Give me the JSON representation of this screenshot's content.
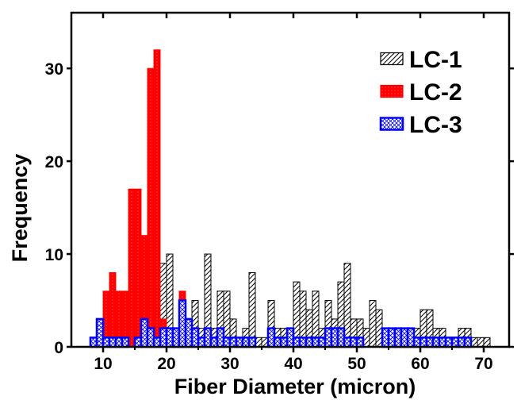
{
  "chart_data": {
    "type": "bar",
    "xlabel": "Fiber Diameter (micron)",
    "ylabel": "Frequency",
    "xlim": [
      5,
      74
    ],
    "ylim": [
      0,
      36
    ],
    "bin_width": 1,
    "x_ticks": [
      10,
      20,
      30,
      40,
      50,
      60,
      70
    ],
    "y_ticks": [
      0,
      10,
      20,
      30
    ],
    "grid": false,
    "legend_position": "top-right",
    "series": [
      {
        "name": "LC-1",
        "color": "#000000",
        "fill": "diagonal-hatch",
        "x": [
          17,
          18,
          19,
          20,
          21,
          22,
          23,
          24,
          25,
          26,
          27,
          28,
          29,
          30,
          31,
          32,
          33,
          34,
          35,
          36,
          37,
          38,
          39,
          40,
          41,
          42,
          43,
          44,
          45,
          46,
          47,
          48,
          49,
          50,
          51,
          52,
          53,
          54,
          55,
          56,
          57,
          58,
          59,
          60,
          61,
          62,
          63,
          64,
          65,
          66,
          67,
          68,
          69,
          70,
          71
        ],
        "values": [
          0,
          8,
          9,
          10,
          2,
          2,
          3,
          5,
          2,
          10,
          2,
          6,
          6,
          3,
          1,
          2,
          8,
          1,
          1,
          5,
          2,
          2,
          1,
          7,
          6,
          4,
          6,
          2,
          5,
          3,
          7,
          9,
          3,
          3,
          2,
          5,
          4,
          2,
          2,
          2,
          2,
          2,
          2,
          4,
          4,
          2,
          2,
          1,
          1,
          2,
          2,
          1,
          1,
          1,
          0
        ]
      },
      {
        "name": "LC-2",
        "color": "#ff0000",
        "fill": "dotted",
        "x": [
          9,
          10,
          11,
          12,
          13,
          14,
          15,
          16,
          17,
          18,
          19,
          20,
          21,
          22,
          23,
          24,
          25
        ],
        "values": [
          0,
          6,
          8,
          6,
          6,
          17,
          17,
          12,
          30,
          32,
          3,
          2,
          2,
          6,
          2,
          1,
          0
        ]
      },
      {
        "name": "LC-3",
        "color": "#0000ff",
        "fill": "cross-hatch",
        "x": [
          8,
          9,
          10,
          11,
          12,
          13,
          14,
          15,
          16,
          17,
          18,
          19,
          20,
          21,
          22,
          23,
          24,
          25,
          26,
          27,
          28,
          29,
          30,
          31,
          32,
          33,
          34,
          35,
          36,
          37,
          38,
          39,
          40,
          41,
          42,
          43,
          44,
          45,
          46,
          47,
          48,
          49,
          50,
          51,
          52,
          53,
          54,
          55,
          56,
          57,
          58,
          59,
          60,
          61,
          62,
          63,
          64,
          65,
          66,
          67
        ],
        "values": [
          1,
          3,
          1,
          1,
          1,
          1,
          0,
          1,
          3,
          2,
          1,
          2,
          2,
          2,
          5,
          3,
          2,
          1,
          2,
          1,
          2,
          1,
          1,
          1,
          1,
          1,
          0,
          0,
          2,
          1,
          1,
          2,
          1,
          1,
          1,
          1,
          1,
          2,
          2,
          2,
          1,
          1,
          1,
          0,
          0,
          0,
          2,
          2,
          2,
          2,
          2,
          1,
          1,
          1,
          1,
          1,
          1,
          1,
          1,
          1
        ]
      }
    ]
  }
}
